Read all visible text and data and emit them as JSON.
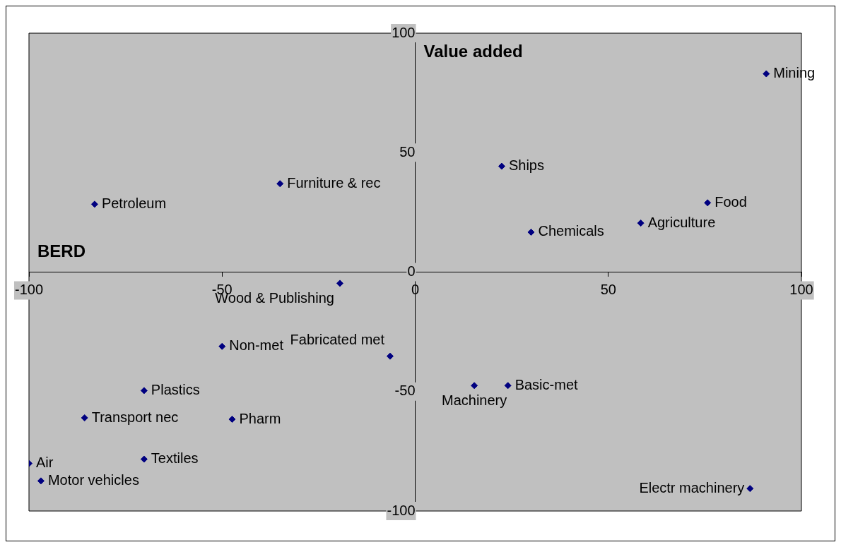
{
  "chart_data": {
    "type": "scatter",
    "xlabel": "BERD",
    "ylabel": "Value added",
    "xlim": [
      -100,
      100
    ],
    "ylim": [
      -100,
      100
    ],
    "xticks": [
      -100,
      -50,
      0,
      50,
      100
    ],
    "yticks": [
      -100,
      -50,
      0,
      50,
      100
    ],
    "grid": false,
    "legend": false,
    "marker": "diamond",
    "series": [
      {
        "name": "Mining",
        "color": "#000080",
        "x": [
          90.9
        ],
        "values": [
          83
        ]
      },
      {
        "name": "Ships",
        "color": "#000080",
        "x": [
          22.4
        ],
        "values": [
          44.3
        ]
      },
      {
        "name": "Food",
        "color": "#000080",
        "x": [
          75.7
        ],
        "values": [
          29
        ]
      },
      {
        "name": "Agriculture",
        "color": "#000080",
        "x": [
          58.4
        ],
        "values": [
          20.5
        ]
      },
      {
        "name": "Chemicals",
        "color": "#000080",
        "x": [
          30
        ],
        "values": [
          16.7
        ]
      },
      {
        "name": "Furniture & rec",
        "color": "#000080",
        "x": [
          -35
        ],
        "values": [
          37
        ]
      },
      {
        "name": "Petroleum",
        "color": "#000080",
        "x": [
          -83
        ],
        "values": [
          28.4
        ]
      },
      {
        "name": "Wood & Publishing",
        "color": "#000080",
        "x": [
          -19.5
        ],
        "values": [
          -4.7
        ]
      },
      {
        "name": "Non-met",
        "color": "#000080",
        "x": [
          -50
        ],
        "values": [
          -31.1
        ]
      },
      {
        "name": "Fabricated met",
        "color": "#000080",
        "x": [
          -6.5
        ],
        "values": [
          -35.2
        ]
      },
      {
        "name": "Machinery",
        "color": "#000080",
        "x": [
          15.3
        ],
        "values": [
          -47.5
        ]
      },
      {
        "name": "Basic-met",
        "color": "#000080",
        "x": [
          24
        ],
        "values": [
          -47.5
        ]
      },
      {
        "name": "Plastics",
        "color": "#000080",
        "x": [
          -70.2
        ],
        "values": [
          -49.6
        ]
      },
      {
        "name": "Transport nec",
        "color": "#000080",
        "x": [
          -85.6
        ],
        "values": [
          -61
        ]
      },
      {
        "name": "Pharm",
        "color": "#000080",
        "x": [
          -47.4
        ],
        "values": [
          -61.6
        ]
      },
      {
        "name": "Textiles",
        "color": "#000080",
        "x": [
          -70.2
        ],
        "values": [
          -78.3
        ]
      },
      {
        "name": "Air",
        "color": "#000080",
        "x": [
          -100
        ],
        "values": [
          -80.1
        ]
      },
      {
        "name": "Motor vehicles",
        "color": "#000080",
        "x": [
          -96.9
        ],
        "values": [
          -87.4
        ]
      },
      {
        "name": "Electr machinery",
        "color": "#000080",
        "x": [
          86.7
        ],
        "values": [
          -90.6
        ]
      }
    ]
  }
}
